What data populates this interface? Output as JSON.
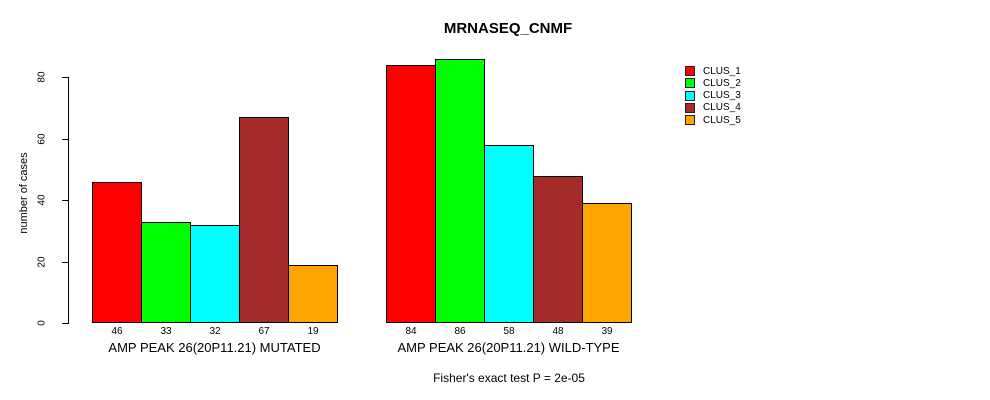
{
  "chart_data": {
    "type": "bar",
    "title": "MRNASEQ_CNMF",
    "xlabel": "",
    "ylabel": "number of cases",
    "ylim": [
      0,
      86
    ],
    "yticks": [
      0,
      20,
      40,
      60,
      80
    ],
    "grid": false,
    "legend_position": "right",
    "bar_value_labels_shown": true,
    "series": [
      {
        "name": "CLUS_1",
        "color": "#ff0000"
      },
      {
        "name": "CLUS_2",
        "color": "#00ff00"
      },
      {
        "name": "CLUS_3",
        "color": "#00ffff"
      },
      {
        "name": "CLUS_4",
        "color": "#a52a2a"
      },
      {
        "name": "CLUS_5",
        "color": "#ffa500"
      }
    ],
    "groups": [
      {
        "label": "AMP PEAK 26(20P11.21) MUTATED",
        "values": [
          46,
          33,
          32,
          67,
          19
        ]
      },
      {
        "label": "AMP PEAK 26(20P11.21) WILD-TYPE",
        "values": [
          84,
          86,
          58,
          48,
          39
        ]
      }
    ],
    "annotation": "Fisher's exact test P = 2e-05"
  }
}
